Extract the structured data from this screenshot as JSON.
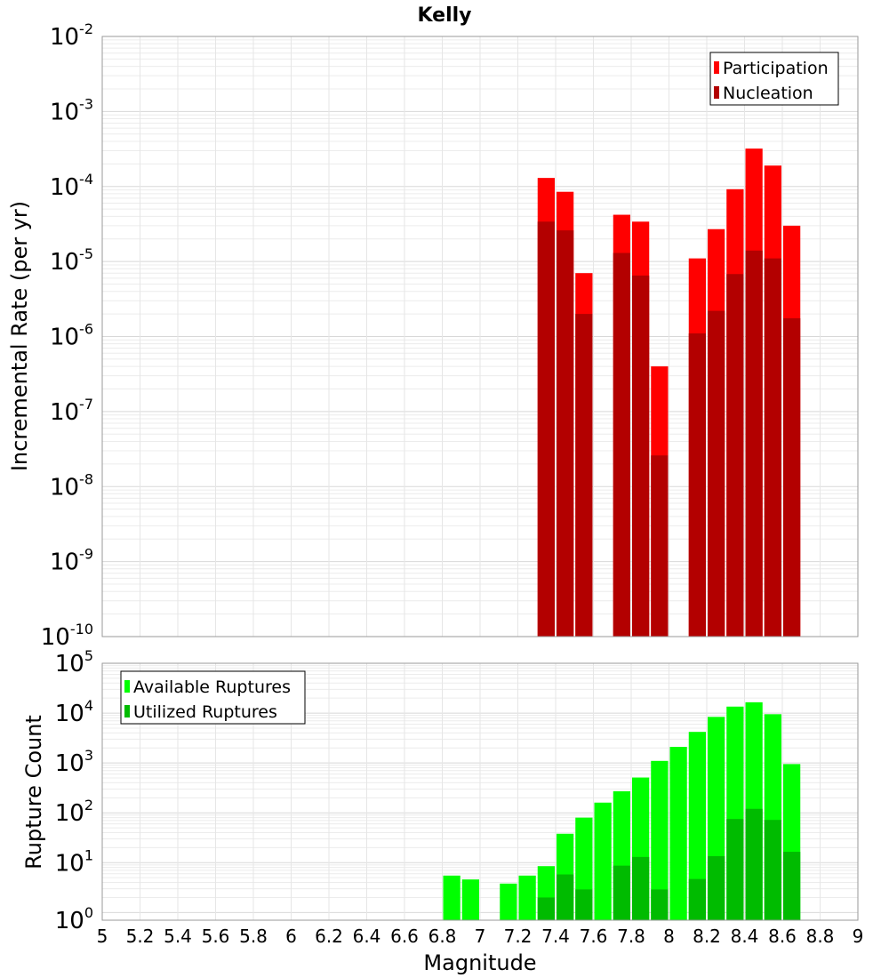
{
  "chart_data": [
    {
      "type": "bar",
      "title": "Kelly",
      "xlabel": "",
      "ylabel": "Incremental Rate (per yr)",
      "yscale": "log",
      "xlim": [
        5,
        9
      ],
      "ylim": [
        1e-10,
        0.01
      ],
      "grid": true,
      "legend_position": "top-right",
      "x": [
        7.35,
        7.45,
        7.55,
        7.75,
        7.85,
        7.95,
        8.15,
        8.25,
        8.35,
        8.45,
        8.55,
        8.65
      ],
      "series": [
        {
          "name": "Participation",
          "color": "#ff0000",
          "values": [
            0.00013,
            8.5e-05,
            7e-06,
            4.2e-05,
            3.4e-05,
            4e-07,
            1.1e-05,
            2.7e-05,
            9.2e-05,
            0.00032,
            0.00019,
            3e-05
          ]
        },
        {
          "name": "Nucleation",
          "color": "#b30000",
          "values": [
            3.4e-05,
            2.6e-05,
            2e-06,
            1.3e-05,
            6.5e-06,
            2.6e-08,
            1.1e-06,
            2.2e-06,
            6.8e-06,
            1.4e-05,
            1.1e-05,
            1.75e-06
          ]
        }
      ]
    },
    {
      "type": "bar",
      "title": "",
      "xlabel": "Magnitude",
      "ylabel": "Rupture Count",
      "yscale": "log",
      "xlim": [
        5,
        9
      ],
      "ylim": [
        0.7,
        100000.0
      ],
      "grid": true,
      "legend_position": "top-left",
      "xticks": [
        "5",
        "5.2",
        "5.4",
        "5.6",
        "5.8",
        "6",
        "6.2",
        "6.4",
        "6.6",
        "6.8",
        "7",
        "7.2",
        "7.4",
        "7.6",
        "7.8",
        "8",
        "8.2",
        "8.4",
        "8.6",
        "8.8",
        "9"
      ],
      "x": [
        6.85,
        6.95,
        7.15,
        7.25,
        7.35,
        7.45,
        7.55,
        7.65,
        7.75,
        7.85,
        7.95,
        8.05,
        8.15,
        8.25,
        8.35,
        8.45,
        8.55,
        8.65
      ],
      "series": [
        {
          "name": "Available Ruptures",
          "color": "#00ff00",
          "values": [
            5.5,
            4.6,
            3.8,
            5.5,
            8.5,
            38,
            80,
            160,
            270,
            510,
            1100,
            2100,
            4200,
            8400,
            13500,
            16500,
            9500,
            950
          ]
        },
        {
          "name": "Utilized Ruptures",
          "color": "#00bb00",
          "values": [
            0,
            0,
            0,
            0,
            2.0,
            5.8,
            2.9,
            0,
            8.7,
            13,
            2.9,
            0,
            4.7,
            13.5,
            75,
            120,
            72,
            16.5
          ]
        }
      ]
    }
  ]
}
